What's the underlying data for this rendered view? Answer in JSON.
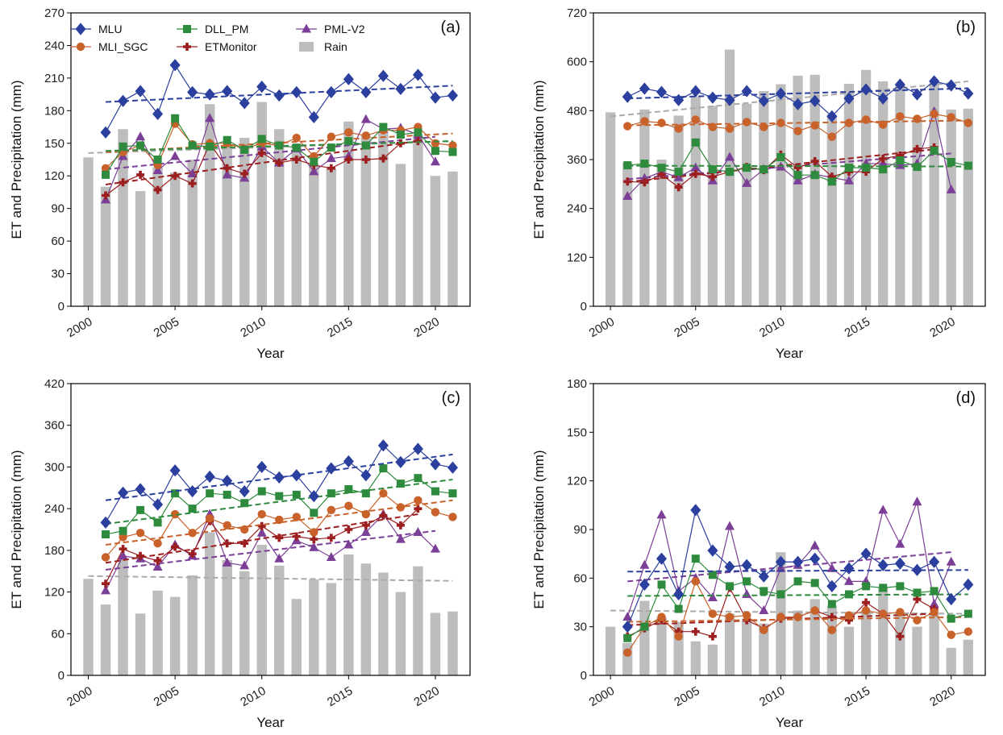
{
  "figure": {
    "xlabel": "Year",
    "ylabel": "ET and Precipitation (mm)"
  },
  "legend": [
    {
      "name": "MLU",
      "color": "#2b3f9e",
      "marker": "diamond"
    },
    {
      "name": "MLI_SGC",
      "color": "#c8612a",
      "marker": "circle"
    },
    {
      "name": "DLL_PM",
      "color": "#2e8b3d",
      "marker": "square"
    },
    {
      "name": "ETMonitor",
      "color": "#9c1e1e",
      "marker": "plus"
    },
    {
      "name": "PML-V2",
      "color": "#7b3f97",
      "marker": "triangle"
    },
    {
      "name": "Rain",
      "color": "#bdbdbd",
      "marker": "bar"
    }
  ],
  "chart_data": [
    {
      "panel": "(a)",
      "type": "line",
      "xlabel": "Year",
      "ylabel": "ET and Precipitation (mm)",
      "ylim": [
        0,
        270
      ],
      "yticks": [
        0,
        30,
        60,
        90,
        120,
        150,
        180,
        210,
        240,
        270
      ],
      "xlim": [
        1999,
        2022
      ],
      "xticks": [
        2000,
        2005,
        2010,
        2015,
        2020
      ],
      "x": [
        2001,
        2002,
        2003,
        2004,
        2005,
        2006,
        2007,
        2008,
        2009,
        2010,
        2011,
        2012,
        2013,
        2014,
        2015,
        2016,
        2017,
        2018,
        2019,
        2020,
        2021
      ],
      "rain": {
        "x": [
          2000,
          2001,
          2002,
          2003,
          2004,
          2005,
          2006,
          2007,
          2008,
          2009,
          2010,
          2011,
          2012,
          2013,
          2014,
          2015,
          2016,
          2017,
          2018,
          2019,
          2020,
          2021
        ],
        "values": [
          137,
          110,
          163,
          106,
          128,
          123,
          135,
          186,
          148,
          155,
          188,
          163,
          149,
          130,
          127,
          170,
          157,
          160,
          131,
          158,
          120,
          124
        ]
      },
      "series": [
        {
          "name": "MLU",
          "values": [
            160,
            189,
            198,
            177,
            222,
            197,
            195,
            198,
            187,
            202,
            194,
            197,
            174,
            197,
            209,
            197,
            212,
            200,
            213,
            192,
            194
          ]
        },
        {
          "name": "MLI_SGC",
          "values": [
            127,
            142,
            148,
            130,
            168,
            149,
            150,
            150,
            145,
            150,
            148,
            155,
            138,
            156,
            160,
            157,
            162,
            162,
            165,
            150,
            148
          ]
        },
        {
          "name": "DLL_PM",
          "values": [
            121,
            147,
            148,
            135,
            173,
            148,
            147,
            153,
            144,
            154,
            148,
            146,
            133,
            146,
            152,
            148,
            165,
            158,
            160,
            143,
            142
          ]
        },
        {
          "name": "ETMonitor",
          "values": [
            102,
            114,
            121,
            107,
            120,
            113,
            150,
            127,
            122,
            141,
            132,
            135,
            130,
            127,
            135,
            135,
            136,
            150,
            152,
            null,
            null
          ]
        },
        {
          "name": "PML-V2",
          "values": [
            98,
            138,
            156,
            125,
            138,
            122,
            173,
            121,
            118,
            147,
            132,
            145,
            124,
            136,
            138,
            172,
            163,
            164,
            158,
            133,
            null
          ]
        }
      ],
      "trends": [
        {
          "name": "MLU",
          "y0": 188,
          "y1": 203
        },
        {
          "name": "MLI_SGC",
          "y0": 142,
          "y1": 159
        },
        {
          "name": "DLL_PM",
          "y0": 143,
          "y1": 152
        },
        {
          "name": "ETMonitor",
          "y0": 112,
          "y1": 152
        },
        {
          "name": "PML-V2",
          "y0": 126,
          "y1": 156
        },
        {
          "name": "Rain",
          "y0": 141,
          "y1": 152
        }
      ]
    },
    {
      "panel": "(b)",
      "type": "line",
      "xlabel": "Year",
      "ylabel": "ET and Precipitation (mm)",
      "ylim": [
        0,
        720
      ],
      "yticks": [
        0,
        120,
        240,
        360,
        480,
        600,
        720
      ],
      "xlim": [
        1999,
        2022
      ],
      "xticks": [
        2000,
        2005,
        2010,
        2015,
        2020
      ],
      "x": [
        2001,
        2002,
        2003,
        2004,
        2005,
        2006,
        2007,
        2008,
        2009,
        2010,
        2011,
        2012,
        2013,
        2014,
        2015,
        2016,
        2017,
        2018,
        2019,
        2020,
        2021
      ],
      "rain": {
        "x": [
          2000,
          2001,
          2002,
          2003,
          2004,
          2005,
          2006,
          2007,
          2008,
          2009,
          2010,
          2011,
          2012,
          2013,
          2014,
          2015,
          2016,
          2017,
          2018,
          2019,
          2020,
          2021
        ],
        "values": [
          476,
          353,
          483,
          360,
          468,
          515,
          492,
          630,
          497,
          528,
          545,
          566,
          568,
          470,
          546,
          580,
          552,
          543,
          462,
          548,
          483,
          485
        ]
      },
      "series": [
        {
          "name": "MLU",
          "values": [
            514,
            534,
            526,
            506,
            528,
            512,
            506,
            528,
            504,
            522,
            496,
            504,
            466,
            510,
            532,
            510,
            544,
            520,
            552,
            542,
            522
          ]
        },
        {
          "name": "MLI_SGC",
          "values": [
            442,
            454,
            450,
            436,
            458,
            440,
            436,
            452,
            440,
            450,
            430,
            444,
            416,
            450,
            458,
            446,
            466,
            460,
            472,
            464,
            450
          ]
        },
        {
          "name": "DLL_PM",
          "values": [
            346,
            350,
            340,
            330,
            402,
            336,
            330,
            340,
            336,
            366,
            322,
            322,
            306,
            340,
            340,
            336,
            358,
            342,
            382,
            354,
            345
          ]
        },
        {
          "name": "ETMonitor",
          "values": [
            306,
            304,
            323,
            292,
            325,
            318,
            330,
            342,
            334,
            372,
            340,
            356,
            318,
            330,
            330,
            362,
            370,
            386,
            390,
            null,
            null
          ]
        },
        {
          "name": "PML-V2",
          "values": [
            270,
            314,
            330,
            316,
            340,
            308,
            366,
            302,
            336,
            342,
            308,
            324,
            316,
            308,
            350,
            350,
            346,
            350,
            478,
            286,
            null
          ]
        }
      ],
      "trends": [
        {
          "name": "MLU",
          "y0": 510,
          "y1": 535
        },
        {
          "name": "MLI_SGC",
          "y0": 444,
          "y1": 456
        },
        {
          "name": "DLL_PM",
          "y0": 345,
          "y1": 343
        },
        {
          "name": "ETMonitor",
          "y0": 305,
          "y1": 385
        },
        {
          "name": "PML-V2",
          "y0": 312,
          "y1": 375
        },
        {
          "name": "Rain",
          "y0": 466,
          "y1": 552
        }
      ]
    },
    {
      "panel": "(c)",
      "type": "line",
      "xlabel": "Year",
      "ylabel": "ET and Precipitation (mm)",
      "ylim": [
        0,
        420
      ],
      "yticks": [
        0,
        60,
        120,
        180,
        240,
        300,
        360,
        420
      ],
      "xlim": [
        1999,
        2022
      ],
      "xticks": [
        2000,
        2005,
        2010,
        2015,
        2020
      ],
      "x": [
        2001,
        2002,
        2003,
        2004,
        2005,
        2006,
        2007,
        2008,
        2009,
        2010,
        2011,
        2012,
        2013,
        2014,
        2015,
        2016,
        2017,
        2018,
        2019,
        2020,
        2021
      ],
      "rain": {
        "x": [
          2000,
          2001,
          2002,
          2003,
          2004,
          2005,
          2006,
          2007,
          2008,
          2009,
          2010,
          2011,
          2012,
          2013,
          2014,
          2015,
          2016,
          2017,
          2018,
          2019,
          2020,
          2021
        ],
        "values": [
          139,
          102,
          168,
          89,
          122,
          113,
          144,
          206,
          166,
          150,
          188,
          158,
          110,
          138,
          133,
          174,
          161,
          148,
          120,
          157,
          90,
          92
        ]
      },
      "series": [
        {
          "name": "MLU",
          "values": [
            220,
            263,
            268,
            246,
            295,
            265,
            286,
            280,
            265,
            300,
            285,
            288,
            258,
            298,
            308,
            288,
            331,
            307,
            326,
            304,
            299
          ]
        },
        {
          "name": "MLI_SGC",
          "values": [
            170,
            199,
            205,
            190,
            232,
            205,
            226,
            216,
            210,
            232,
            224,
            228,
            206,
            238,
            244,
            232,
            262,
            242,
            252,
            235,
            228
          ]
        },
        {
          "name": "DLL_PM",
          "values": [
            203,
            208,
            238,
            220,
            262,
            240,
            262,
            260,
            248,
            265,
            258,
            260,
            234,
            262,
            268,
            262,
            298,
            276,
            284,
            265,
            262
          ]
        },
        {
          "name": "ETMonitor",
          "values": [
            132,
            182,
            172,
            165,
            185,
            175,
            222,
            190,
            190,
            215,
            198,
            200,
            196,
            198,
            210,
            216,
            230,
            216,
            240,
            null,
            null
          ]
        },
        {
          "name": "PML-V2",
          "values": [
            122,
            172,
            168,
            156,
            188,
            172,
            232,
            162,
            158,
            205,
            168,
            194,
            184,
            170,
            188,
            206,
            232,
            196,
            206,
            182,
            null
          ]
        }
      ],
      "trends": [
        {
          "name": "MLU",
          "y0": 252,
          "y1": 318
        },
        {
          "name": "MLI_SGC",
          "y0": 188,
          "y1": 252
        },
        {
          "name": "DLL_PM",
          "y0": 218,
          "y1": 282
        },
        {
          "name": "ETMonitor",
          "y0": 162,
          "y1": 232
        },
        {
          "name": "PML-V2",
          "y0": 152,
          "y1": 208
        },
        {
          "name": "Rain",
          "y0": 143,
          "y1": 136
        }
      ]
    },
    {
      "panel": "(d)",
      "type": "line",
      "xlabel": "Year",
      "ylabel": "ET and Precipitation (mm)",
      "ylim": [
        0,
        180
      ],
      "yticks": [
        0,
        30,
        60,
        90,
        120,
        150,
        180
      ],
      "xlim": [
        1999,
        2022
      ],
      "xticks": [
        2000,
        2005,
        2010,
        2015,
        2020
      ],
      "x": [
        2001,
        2002,
        2003,
        2004,
        2005,
        2006,
        2007,
        2008,
        2009,
        2010,
        2011,
        2012,
        2013,
        2014,
        2015,
        2016,
        2017,
        2018,
        2019,
        2020,
        2021
      ],
      "rain": {
        "x": [
          2000,
          2001,
          2002,
          2003,
          2004,
          2005,
          2006,
          2007,
          2008,
          2009,
          2010,
          2011,
          2012,
          2013,
          2014,
          2015,
          2016,
          2017,
          2018,
          2019,
          2020,
          2021
        ],
        "values": [
          30,
          20,
          46,
          36,
          33,
          21,
          19,
          38,
          35,
          32,
          76,
          40,
          47,
          43,
          30,
          40,
          54,
          38,
          30,
          38,
          17,
          22
        ]
      },
      "series": [
        {
          "name": "MLU",
          "values": [
            30,
            56,
            72,
            50,
            102,
            77,
            67,
            68,
            61,
            70,
            70,
            72,
            55,
            66,
            75,
            68,
            69,
            65,
            70,
            47,
            56
          ]
        },
        {
          "name": "MLI_SGC",
          "values": [
            14,
            30,
            36,
            24,
            58,
            38,
            36,
            37,
            28,
            36,
            36,
            40,
            28,
            37,
            40,
            38,
            39,
            34,
            39,
            25,
            27
          ]
        },
        {
          "name": "DLL_PM",
          "values": [
            23,
            30,
            56,
            41,
            72,
            62,
            55,
            58,
            52,
            50,
            58,
            57,
            44,
            50,
            55,
            54,
            55,
            51,
            52,
            35,
            38
          ]
        },
        {
          "name": "ETMonitor",
          "values": [
            24,
            29,
            34,
            27,
            27,
            24,
            54,
            34,
            29,
            35,
            36,
            40,
            36,
            34,
            45,
            38,
            24,
            47,
            41,
            null,
            null
          ]
        },
        {
          "name": "PML-V2",
          "values": [
            36,
            68,
            99,
            52,
            60,
            48,
            92,
            50,
            40,
            66,
            68,
            80,
            66,
            58,
            58,
            102,
            81,
            107,
            44,
            70,
            null
          ]
        }
      ],
      "trends": [
        {
          "name": "MLU",
          "y0": 64,
          "y1": 65
        },
        {
          "name": "MLI_SGC",
          "y0": 33,
          "y1": 36
        },
        {
          "name": "DLL_PM",
          "y0": 49,
          "y1": 50
        },
        {
          "name": "ETMonitor",
          "y0": 31,
          "y1": 38
        },
        {
          "name": "PML-V2",
          "y0": 58,
          "y1": 76
        },
        {
          "name": "Rain",
          "y0": 40,
          "y1": 38
        }
      ]
    }
  ]
}
